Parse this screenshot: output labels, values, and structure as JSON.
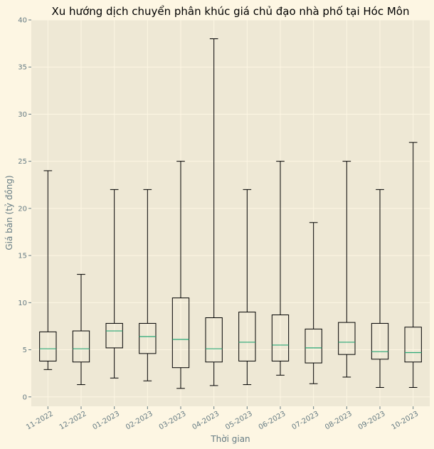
{
  "chart_data": {
    "type": "box",
    "title": "Xu hướng dịch chuyển phân khúc giá chủ đạo nhà phố tại Hóc Môn",
    "xlabel": "Thời gian",
    "ylabel": "Giá bán (tỷ đồng)",
    "ylim": [
      -1,
      40
    ],
    "yticks": [
      0,
      5,
      10,
      15,
      20,
      25,
      30,
      35,
      40
    ],
    "grid": true,
    "categories": [
      "11-2022",
      "12-2022",
      "01-2023",
      "02-2023",
      "03-2023",
      "04-2023",
      "05-2023",
      "06-2023",
      "07-2023",
      "08-2023",
      "09-2023",
      "10-2023"
    ],
    "boxes": [
      {
        "whisker_low": 2.9,
        "q1": 3.8,
        "median": 5.1,
        "q3": 6.9,
        "whisker_high": 24
      },
      {
        "whisker_low": 1.3,
        "q1": 3.7,
        "median": 5.1,
        "q3": 7.0,
        "whisker_high": 13
      },
      {
        "whisker_low": 2.0,
        "q1": 5.2,
        "median": 7.0,
        "q3": 7.8,
        "whisker_high": 22
      },
      {
        "whisker_low": 1.7,
        "q1": 4.6,
        "median": 6.4,
        "q3": 7.8,
        "whisker_high": 22
      },
      {
        "whisker_low": 0.9,
        "q1": 3.1,
        "median": 6.1,
        "q3": 10.5,
        "whisker_high": 25
      },
      {
        "whisker_low": 1.2,
        "q1": 3.7,
        "median": 5.1,
        "q3": 8.4,
        "whisker_high": 38
      },
      {
        "whisker_low": 1.3,
        "q1": 3.8,
        "median": 5.8,
        "q3": 9.0,
        "whisker_high": 22
      },
      {
        "whisker_low": 2.3,
        "q1": 3.8,
        "median": 5.5,
        "q3": 8.7,
        "whisker_high": 25
      },
      {
        "whisker_low": 1.4,
        "q1": 3.6,
        "median": 5.2,
        "q3": 7.2,
        "whisker_high": 18.5
      },
      {
        "whisker_low": 2.1,
        "q1": 4.5,
        "median": 5.8,
        "q3": 7.9,
        "whisker_high": 25
      },
      {
        "whisker_low": 1.0,
        "q1": 4.0,
        "median": 4.8,
        "q3": 7.8,
        "whisker_high": 22
      },
      {
        "whisker_low": 1.0,
        "q1": 3.7,
        "median": 4.7,
        "q3": 7.4,
        "whisker_high": 27
      }
    ],
    "colors": {
      "figure_bg": "#fdf6e3",
      "axes_bg": "#eee8d5",
      "grid": "#fdf6e3",
      "box": "#000000",
      "median": "#2aa876",
      "text": "#657b83"
    }
  }
}
